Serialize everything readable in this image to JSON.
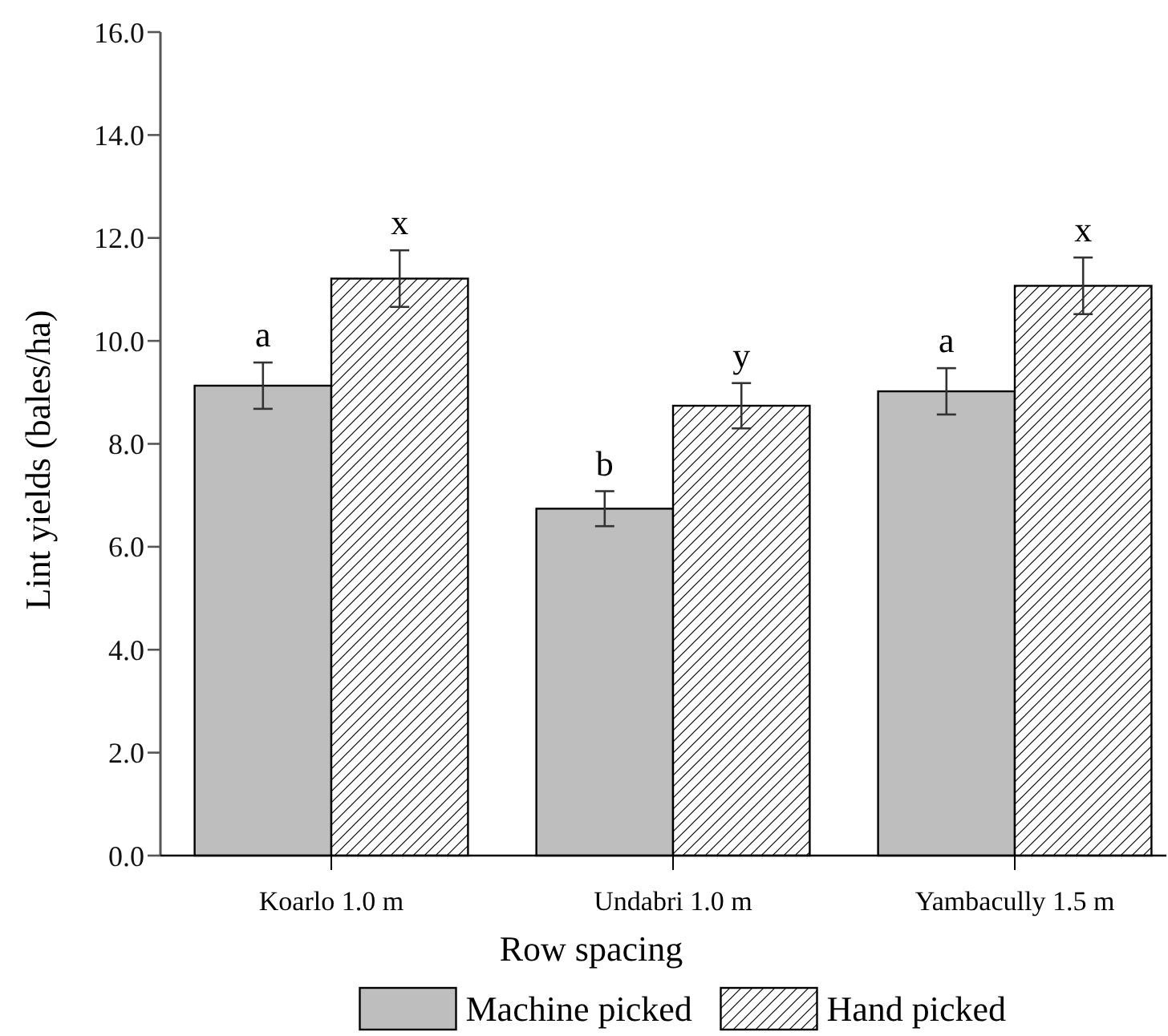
{
  "chart_data": {
    "type": "bar",
    "xlabel": "Row spacing",
    "ylabel": "Lint yields (bales/ha)",
    "categories": [
      "Koarlo 1.0 m",
      "Undabri 1.0 m",
      "Yambacully 1.5 m"
    ],
    "series": [
      {
        "name": "Machine picked",
        "color": "#bebebe",
        "values": [
          9.13,
          6.74,
          9.02
        ],
        "errors": [
          0.45,
          0.34,
          0.45
        ]
      },
      {
        "name": "Hand picked",
        "color": "#000000",
        "values": [
          11.21,
          8.74,
          11.07
        ],
        "errors": [
          0.55,
          0.44,
          0.55
        ]
      }
    ],
    "ylim": [
      0,
      16
    ],
    "yticks": [
      {
        "value": 0,
        "label": "0.0"
      },
      {
        "value": 2,
        "label": "2.0"
      },
      {
        "value": 4,
        "label": "4.0"
      },
      {
        "value": 6,
        "label": "6.0"
      },
      {
        "value": 8,
        "label": "8.0"
      },
      {
        "value": 10,
        "label": "10.0"
      },
      {
        "value": 12,
        "label": "12.0"
      },
      {
        "value": 14,
        "label": "14.0"
      },
      {
        "value": 16,
        "label": "16.0"
      }
    ],
    "annotations": [
      "a",
      "x",
      "b",
      "y",
      "a",
      "x"
    ],
    "legend": "bottom",
    "grid": false
  }
}
